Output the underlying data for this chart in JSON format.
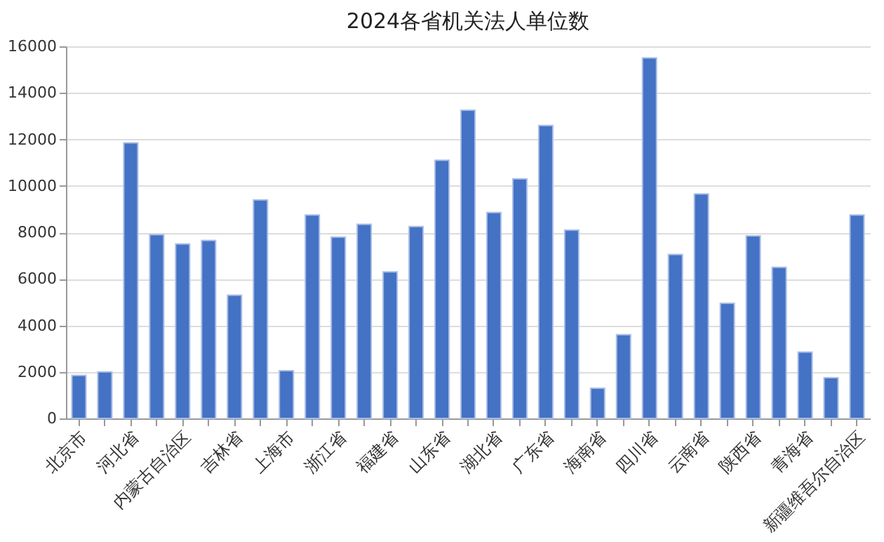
{
  "chart_data": {
    "type": "bar",
    "title": "2024各省机关法人单位数",
    "categories": [
      "北京市",
      null,
      "河北省",
      null,
      "内蒙古自治区",
      null,
      "吉林省",
      null,
      "上海市",
      null,
      "浙江省",
      null,
      "福建省",
      null,
      "山东省",
      null,
      "湖北省",
      null,
      "广东省",
      null,
      "海南省",
      null,
      "四川省",
      null,
      "云南省",
      null,
      "陕西省",
      null,
      "青海省",
      null,
      "新疆维吾尔自治区"
    ],
    "values": [
      1850,
      2000,
      11850,
      7900,
      7500,
      7650,
      5300,
      9400,
      2050,
      8750,
      7800,
      8350,
      6300,
      8250,
      11100,
      13250,
      8850,
      10300,
      12600,
      8100,
      1300,
      3600,
      15500,
      7050,
      9650,
      4950,
      7850,
      6500,
      2850,
      1750,
      8750
    ],
    "color": "#4472c4",
    "ylim": [
      0,
      16000
    ],
    "yticks": [
      0,
      2000,
      4000,
      6000,
      8000,
      10000,
      12000,
      14000,
      16000
    ],
    "grid": "y"
  }
}
